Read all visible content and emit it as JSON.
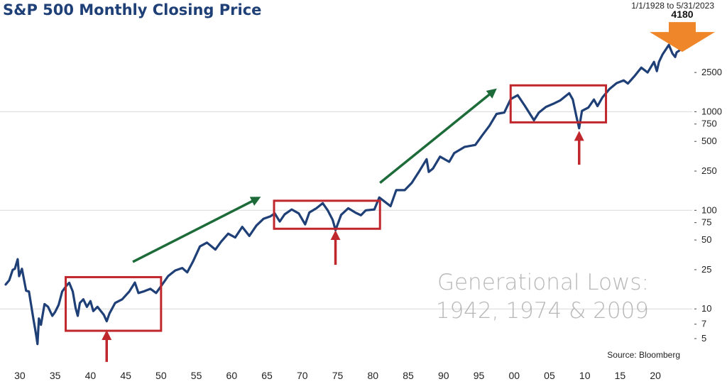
{
  "chart_data": {
    "type": "line",
    "title": "S&P 500 Monthly Closing Price",
    "date_range": "1/1/1928 to 5/31/2023",
    "source": "Source: Bloomberg",
    "annotation": [
      "Generational Lows:",
      "1942, 1974 & 2009"
    ],
    "callout_label": "4180",
    "y_scale": "log",
    "ylim": [
      2.8,
      7000
    ],
    "xlim": [
      1928,
      2023.5
    ],
    "x_ticks": [
      1930,
      1935,
      1940,
      1945,
      1950,
      1955,
      1960,
      1965,
      1970,
      1975,
      1980,
      1985,
      1990,
      1995,
      2000,
      2005,
      2010,
      2015,
      2020
    ],
    "x_tick_labels": [
      "30",
      "35",
      "40",
      "45",
      "50",
      "55",
      "60",
      "65",
      "70",
      "75",
      "80",
      "85",
      "90",
      "95",
      "00",
      "05",
      "10",
      "15",
      "20"
    ],
    "y_ticks": [
      2500,
      1000,
      750,
      500,
      250,
      100,
      75,
      50,
      25,
      10,
      7,
      5
    ],
    "y_tick_labels": [
      "2500",
      "1000",
      "750",
      "500",
      "250",
      "100",
      "75",
      "50",
      "25",
      "10",
      "7",
      "5"
    ],
    "gridlines": [
      1000,
      100,
      10
    ],
    "colors": {
      "line": "#1f3f77",
      "box": "#c0272d",
      "up_arrow": "#1e6b3a",
      "callout": "#f0862a",
      "grid": "#d8d8d8"
    },
    "series": [
      {
        "values": [
          [
            1928.0,
            17.7
          ],
          [
            1928.5,
            19.5
          ],
          [
            1929.0,
            24.9
          ],
          [
            1929.3,
            25.5
          ],
          [
            1929.7,
            31.9
          ],
          [
            1929.9,
            21.5
          ],
          [
            1930.3,
            25.5
          ],
          [
            1930.9,
            15.3
          ],
          [
            1931.3,
            15.0
          ],
          [
            1931.9,
            8.1
          ],
          [
            1932.3,
            5.5
          ],
          [
            1932.5,
            4.4
          ],
          [
            1932.7,
            8.0
          ],
          [
            1933.0,
            6.9
          ],
          [
            1933.5,
            11.2
          ],
          [
            1934.0,
            10.5
          ],
          [
            1934.6,
            8.5
          ],
          [
            1935.0,
            9.3
          ],
          [
            1935.5,
            11.0
          ],
          [
            1936.0,
            15.0
          ],
          [
            1936.7,
            17.5
          ],
          [
            1937.0,
            18.4
          ],
          [
            1937.5,
            15.0
          ],
          [
            1937.9,
            10.2
          ],
          [
            1938.2,
            8.5
          ],
          [
            1938.5,
            11.5
          ],
          [
            1939.0,
            12.5
          ],
          [
            1939.5,
            10.5
          ],
          [
            1940.0,
            12.0
          ],
          [
            1940.4,
            9.5
          ],
          [
            1941.0,
            10.5
          ],
          [
            1941.9,
            8.7
          ],
          [
            1942.3,
            7.5
          ],
          [
            1942.7,
            9.0
          ],
          [
            1943.5,
            11.5
          ],
          [
            1944.5,
            12.5
          ],
          [
            1945.5,
            15.0
          ],
          [
            1946.3,
            18.5
          ],
          [
            1946.8,
            14.5
          ],
          [
            1947.5,
            15.0
          ],
          [
            1948.5,
            16.0
          ],
          [
            1949.3,
            14.5
          ],
          [
            1950.0,
            17.0
          ],
          [
            1951.0,
            21.5
          ],
          [
            1952.0,
            24.5
          ],
          [
            1953.0,
            26.0
          ],
          [
            1953.7,
            23.5
          ],
          [
            1954.5,
            30.0
          ],
          [
            1955.5,
            43.0
          ],
          [
            1956.5,
            47.0
          ],
          [
            1957.7,
            40.0
          ],
          [
            1958.5,
            48.0
          ],
          [
            1959.5,
            58.0
          ],
          [
            1960.5,
            53.0
          ],
          [
            1961.5,
            68.0
          ],
          [
            1962.5,
            55.0
          ],
          [
            1963.5,
            70.0
          ],
          [
            1964.5,
            82.0
          ],
          [
            1965.5,
            87.0
          ],
          [
            1966.1,
            93.0
          ],
          [
            1966.8,
            77.0
          ],
          [
            1967.5,
            91.0
          ],
          [
            1968.5,
            102.0
          ],
          [
            1969.5,
            93.0
          ],
          [
            1970.4,
            72.0
          ],
          [
            1971.0,
            95.0
          ],
          [
            1972.0,
            105.0
          ],
          [
            1972.9,
            118.0
          ],
          [
            1973.6,
            100.0
          ],
          [
            1974.3,
            80.0
          ],
          [
            1974.7,
            63.0
          ],
          [
            1975.5,
            90.0
          ],
          [
            1976.5,
            105.0
          ],
          [
            1977.5,
            95.0
          ],
          [
            1978.3,
            89.0
          ],
          [
            1979.0,
            100.0
          ],
          [
            1980.2,
            102.0
          ],
          [
            1980.9,
            135.0
          ],
          [
            1981.5,
            125.0
          ],
          [
            1982.5,
            110.0
          ],
          [
            1983.3,
            160.0
          ],
          [
            1984.5,
            160.0
          ],
          [
            1985.5,
            190.0
          ],
          [
            1986.5,
            245.0
          ],
          [
            1987.6,
            330.0
          ],
          [
            1987.9,
            245.0
          ],
          [
            1988.5,
            265.0
          ],
          [
            1989.5,
            350.0
          ],
          [
            1990.8,
            310.0
          ],
          [
            1991.5,
            380.0
          ],
          [
            1993.0,
            440.0
          ],
          [
            1994.5,
            460.0
          ],
          [
            1995.5,
            580.0
          ],
          [
            1996.5,
            720.0
          ],
          [
            1997.5,
            950.0
          ],
          [
            1998.6,
            980.0
          ],
          [
            1999.5,
            1340.0
          ],
          [
            2000.5,
            1470.0
          ],
          [
            2001.5,
            1150.0
          ],
          [
            2002.8,
            820.0
          ],
          [
            2003.5,
            980.0
          ],
          [
            2004.5,
            1120.0
          ],
          [
            2005.5,
            1200.0
          ],
          [
            2006.5,
            1300.0
          ],
          [
            2007.8,
            1540.0
          ],
          [
            2008.3,
            1330.0
          ],
          [
            2008.8,
            900.0
          ],
          [
            2009.2,
            680.0
          ],
          [
            2009.6,
            1020.0
          ],
          [
            2010.5,
            1100.0
          ],
          [
            2011.3,
            1330.0
          ],
          [
            2011.8,
            1140.0
          ],
          [
            2012.5,
            1400.0
          ],
          [
            2013.5,
            1700.0
          ],
          [
            2014.5,
            1950.0
          ],
          [
            2015.5,
            2080.0
          ],
          [
            2016.1,
            1930.0
          ],
          [
            2017.0,
            2280.0
          ],
          [
            2018.0,
            2800.0
          ],
          [
            2018.9,
            2500.0
          ],
          [
            2019.8,
            3200.0
          ],
          [
            2020.2,
            2580.0
          ],
          [
            2020.5,
            3200.0
          ],
          [
            2021.0,
            3800.0
          ],
          [
            2021.9,
            4760.0
          ],
          [
            2022.4,
            3900.0
          ],
          [
            2022.8,
            3590.0
          ],
          [
            2023.0,
            4000.0
          ],
          [
            2023.4,
            4180.0
          ]
        ]
      }
    ],
    "boxes": [
      {
        "x0": 1936.5,
        "x1": 1950.0,
        "y0": 6.0,
        "y1": 21.0
      },
      {
        "x0": 1966.0,
        "x1": 1981.0,
        "y0": 65.0,
        "y1": 125.0
      },
      {
        "x0": 1999.5,
        "x1": 2013.0,
        "y0": 780.0,
        "y1": 1850.0
      }
    ],
    "low_arrows": [
      {
        "x": 1942.3,
        "tip": 6.2,
        "tail": 2.9
      },
      {
        "x": 1974.7,
        "tip": 64.0,
        "tail": 28.0
      },
      {
        "x": 2009.2,
        "tip": 650.0,
        "tail": 290.0
      }
    ],
    "trend_arrows": [
      {
        "x0": 1946.0,
        "y0": 30.0,
        "x1": 1963.5,
        "y1": 130.0
      },
      {
        "x0": 1981.0,
        "y0": 190.0,
        "x1": 1997.0,
        "y1": 1600.0
      }
    ]
  }
}
